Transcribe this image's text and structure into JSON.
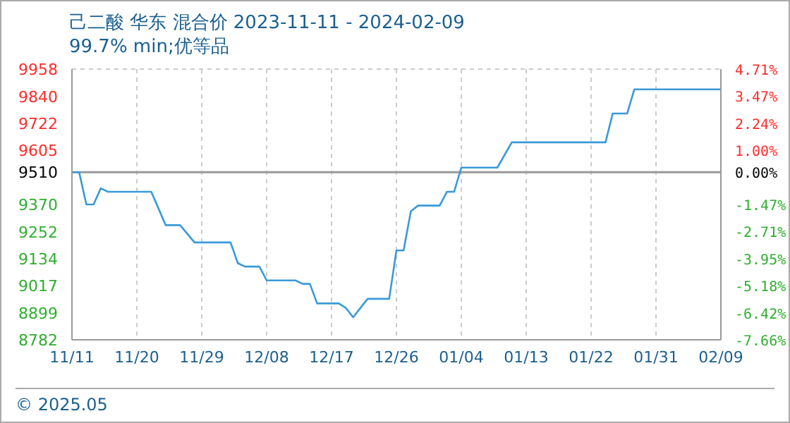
{
  "chart_data": {
    "type": "line",
    "title": "己二酸 华东 混合价 2023-11-11 - 2024-02-09",
    "subtitle": "99.7% min;优等品",
    "annotations": [
      "© 2025.05"
    ],
    "x": [
      "2023-11-11",
      "2023-11-12",
      "2023-11-13",
      "2023-11-14",
      "2023-11-15",
      "2023-11-16",
      "2023-11-22",
      "2023-11-24",
      "2023-11-26",
      "2023-11-28",
      "2023-12-03",
      "2023-12-04",
      "2023-12-05",
      "2023-12-07",
      "2023-12-08",
      "2023-12-12",
      "2023-12-13",
      "2023-12-14",
      "2023-12-15",
      "2023-12-18",
      "2023-12-19",
      "2023-12-20",
      "2023-12-22",
      "2023-12-25",
      "2023-12-26",
      "2023-12-27",
      "2023-12-28",
      "2023-12-29",
      "2024-01-01",
      "2024-01-02",
      "2024-01-03",
      "2024-01-04",
      "2024-01-09",
      "2024-01-11",
      "2024-01-24",
      "2024-01-25",
      "2024-01-27",
      "2024-01-28",
      "2024-02-09"
    ],
    "series": [
      {
        "color": "#3a9ad9",
        "values": [
          9510,
          9510,
          9370,
          9370,
          9440,
          9425,
          9425,
          9280,
          9280,
          9205,
          9205,
          9115,
          9100,
          9100,
          9040,
          9040,
          9025,
          9025,
          8940,
          8940,
          8920,
          8880,
          8960,
          8960,
          9170,
          9170,
          9340,
          9365,
          9365,
          9425,
          9425,
          9530,
          9530,
          9640,
          9640,
          9765,
          9765,
          9870,
          9870
        ]
      }
    ],
    "xlim": [
      "2023-11-11",
      "2024-02-09"
    ],
    "xticks": [
      {
        "value": "2023-11-11",
        "label": "11/11"
      },
      {
        "value": "2023-11-20",
        "label": "11/20"
      },
      {
        "value": "2023-11-29",
        "label": "11/29"
      },
      {
        "value": "2023-12-08",
        "label": "12/08"
      },
      {
        "value": "2023-12-17",
        "label": "12/17"
      },
      {
        "value": "2023-12-26",
        "label": "12/26"
      },
      {
        "value": "2024-01-04",
        "label": "01/04"
      },
      {
        "value": "2024-01-13",
        "label": "01/13"
      },
      {
        "value": "2024-01-22",
        "label": "01/22"
      },
      {
        "value": "2024-01-31",
        "label": "01/31"
      },
      {
        "value": "2024-02-09",
        "label": "02/09"
      }
    ],
    "ylim": [
      8782,
      9958
    ],
    "yticks": [
      8782,
      8899,
      9017,
      9134,
      9252,
      9370,
      9510,
      9605,
      9722,
      9840,
      9958
    ],
    "y2lim": [
      -7.66,
      4.71
    ],
    "y2ticks": [
      {
        "value": -7.66,
        "label": "-7.66%"
      },
      {
        "value": -6.42,
        "label": "-6.42%"
      },
      {
        "value": -5.18,
        "label": "-5.18%"
      },
      {
        "value": -3.95,
        "label": "-3.95%"
      },
      {
        "value": -2.71,
        "label": "-2.71%"
      },
      {
        "value": -1.47,
        "label": "-1.47%"
      },
      {
        "value": 0,
        "label": "0.00%"
      },
      {
        "value": 1,
        "label": "1.00%"
      },
      {
        "value": 2.24,
        "label": "2.24%"
      },
      {
        "value": 3.47,
        "label": "3.47%"
      },
      {
        "value": 4.71,
        "label": "4.71%"
      }
    ],
    "ref_lines": [
      {
        "axis": "y",
        "value": 9510,
        "color": "#999999"
      }
    ],
    "grid": true,
    "marker": "none",
    "line_style": "solid"
  }
}
